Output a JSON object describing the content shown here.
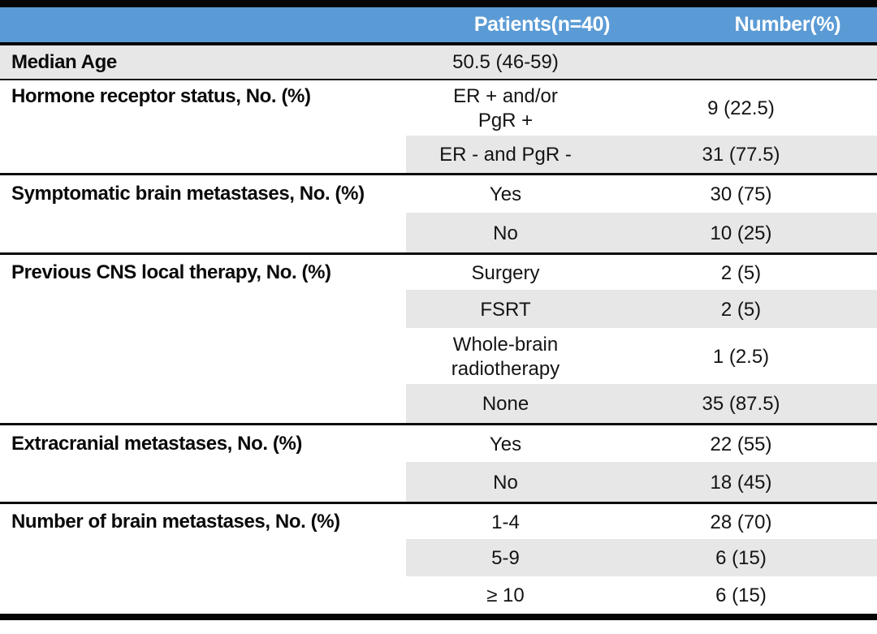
{
  "table": {
    "title_semantic": "Patient characteristics table",
    "header": {
      "col_patients": "Patients(n=40)",
      "col_number": "Number(%)"
    },
    "colors": {
      "header_bg": "#5B9BD5",
      "header_text": "#FFFFFF",
      "band_gray": "#E8E7E7",
      "rule_black": "#050505"
    },
    "median_row": {
      "label": "Median Age",
      "value": "50.5 (46-59)"
    },
    "sections": [
      {
        "label": "Hormone receptor status, No. (%)",
        "rows": [
          {
            "category": "ER + and/or\nPgR +",
            "number": "9 (22.5)"
          },
          {
            "category": "ER - and PgR -",
            "number": "31 (77.5)"
          }
        ]
      },
      {
        "label": "Symptomatic brain metastases, No. (%)",
        "rows": [
          {
            "category": "Yes",
            "number": "30 (75)"
          },
          {
            "category": "No",
            "number": "10 (25)"
          }
        ]
      },
      {
        "label": "Previous CNS local therapy, No. (%)",
        "rows": [
          {
            "category": "Surgery",
            "number": "2 (5)"
          },
          {
            "category": "FSRT",
            "number": "2 (5)"
          },
          {
            "category": "Whole-brain\nradiotherapy",
            "number": "1 (2.5)"
          },
          {
            "category": "None",
            "number": "35 (87.5)"
          }
        ]
      },
      {
        "label": "Extracranial metastases, No. (%)",
        "rows": [
          {
            "category": "Yes",
            "number": "22 (55)"
          },
          {
            "category": "No",
            "number": "18 (45)"
          }
        ]
      },
      {
        "label": "Number of brain metastases, No. (%)",
        "rows": [
          {
            "category": "1-4",
            "number": "28 (70)"
          },
          {
            "category": "5-9",
            "number": "6 (15)"
          },
          {
            "category": "≥ 10",
            "number": "6 (15)"
          }
        ]
      }
    ]
  }
}
